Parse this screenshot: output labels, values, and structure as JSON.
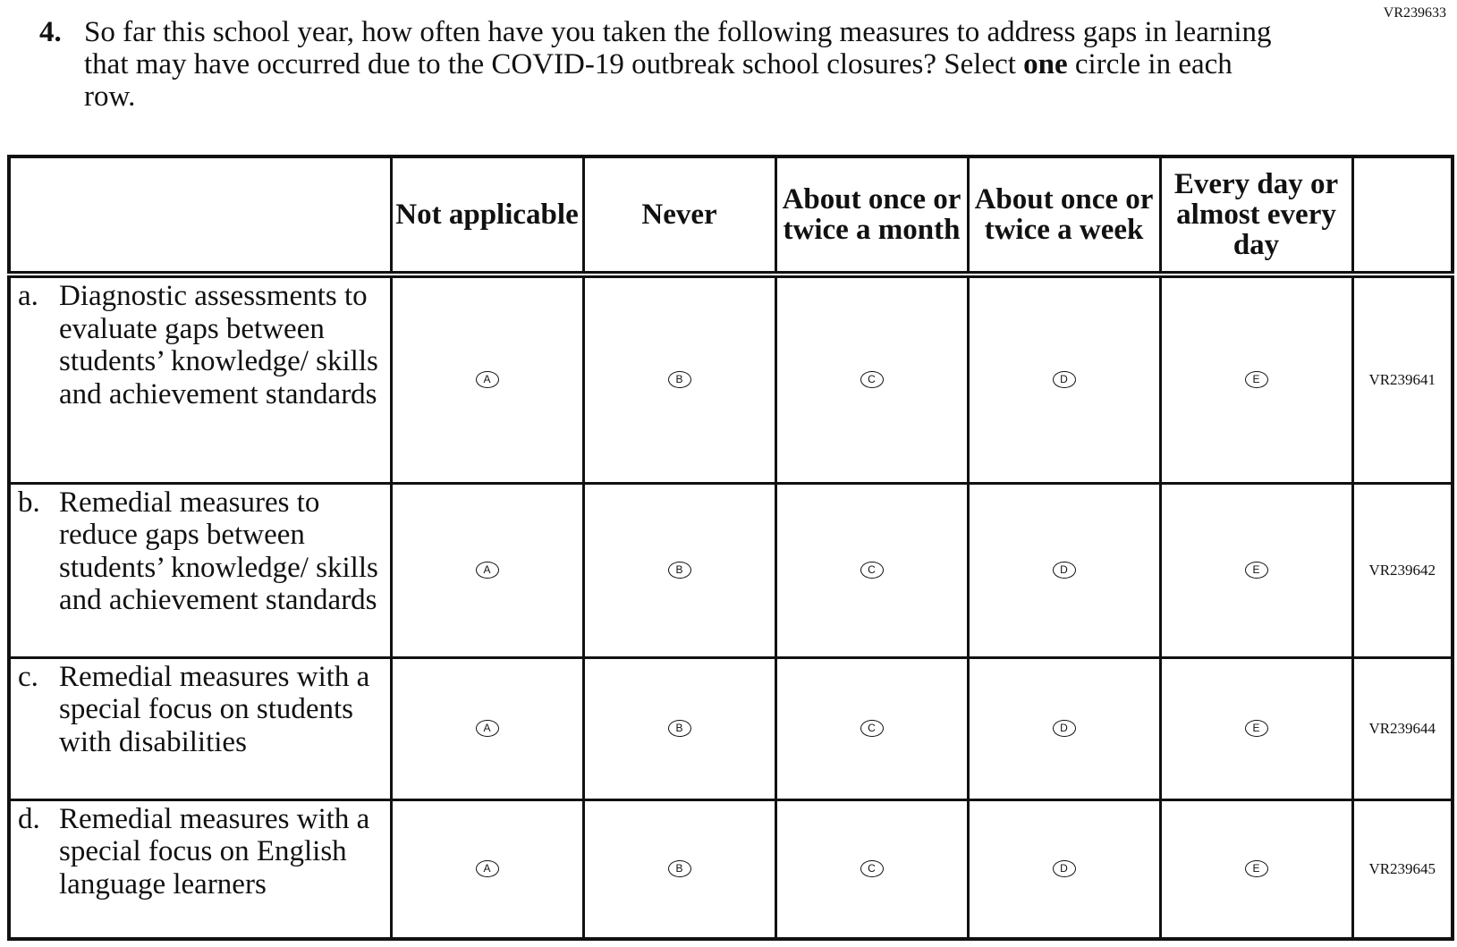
{
  "header": {
    "form_code": "VR239633",
    "number": "4.",
    "question": [
      "So far this school year, how often have you taken the following measures to address gaps in learning that may have occurred due to the COVID-19 outbreak school closures? Select ",
      "one",
      " circle in each row."
    ]
  },
  "table": {
    "columns": [
      "Not applicable",
      "Never",
      "About once or twice a month",
      "About once or twice a week",
      "Every day or almost every day"
    ],
    "rows": [
      {
        "letter": "a.",
        "label": "Diagnostic assessments to evaluate gaps between students’ knowledge/ skills and achievement standards",
        "options": [
          "A",
          "B",
          "C",
          "D",
          "E"
        ],
        "code": "VR239641"
      },
      {
        "letter": "b.",
        "label": "Remedial measures to reduce gaps between students’ knowledge/ skills and achievement standards",
        "options": [
          "A",
          "B",
          "C",
          "D",
          "E"
        ],
        "code": "VR239642"
      },
      {
        "letter": "c.",
        "label": "Remedial measures with a special focus on students with disabilities",
        "options": [
          "A",
          "B",
          "C",
          "D",
          "E"
        ],
        "code": "VR239644"
      },
      {
        "letter": "d.",
        "label": "Remedial measures with a special focus on English language learners",
        "options": [
          "A",
          "B",
          "C",
          "D",
          "E"
        ],
        "code": "VR239645"
      }
    ]
  }
}
